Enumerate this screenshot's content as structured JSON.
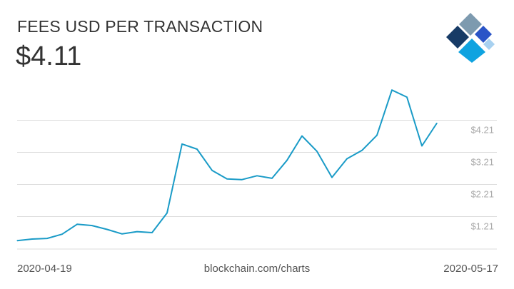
{
  "header": {
    "title": "FEES USD PER TRANSACTION",
    "current_value": "$4.11"
  },
  "footer": {
    "start_date": "2020-04-19",
    "source": "blockchain.com/charts",
    "end_date": "2020-05-17"
  },
  "colors": {
    "line": "#1a9bc7",
    "grid": "#dddddd",
    "tick_label": "#aaaaaa",
    "text": "#333333",
    "logo_dark": "#173b66",
    "logo_steel": "#7d9aaf",
    "logo_blue": "#2a54c7",
    "logo_cyan": "#0fa3e0",
    "logo_light": "#a8d1f0"
  },
  "logo": {
    "icon": "blockchain-logo-icon"
  },
  "chart_data": {
    "type": "line",
    "title": "FEES USD PER TRANSACTION",
    "x": [
      "2020-04-19",
      "2020-04-20",
      "2020-04-21",
      "2020-04-22",
      "2020-04-23",
      "2020-04-24",
      "2020-04-25",
      "2020-04-26",
      "2020-04-27",
      "2020-04-28",
      "2020-04-29",
      "2020-04-30",
      "2020-05-01",
      "2020-05-02",
      "2020-05-03",
      "2020-05-04",
      "2020-05-05",
      "2020-05-06",
      "2020-05-07",
      "2020-05-08",
      "2020-05-09",
      "2020-05-10",
      "2020-05-11",
      "2020-05-12",
      "2020-05-13",
      "2020-05-14",
      "2020-05-15",
      "2020-05-16",
      "2020-05-17"
    ],
    "series": [
      {
        "values": [
          0.45,
          0.5,
          0.52,
          0.65,
          0.96,
          0.92,
          0.8,
          0.66,
          0.73,
          0.7,
          1.31,
          3.46,
          3.3,
          2.64,
          2.37,
          2.35,
          2.47,
          2.39,
          2.95,
          3.71,
          3.23,
          2.42,
          3.0,
          3.26,
          3.73,
          5.14,
          4.92,
          3.4,
          4.11
        ]
      }
    ],
    "yticks": [
      "$1.21",
      "$2.21",
      "$3.21",
      "$4.21"
    ],
    "ytick_values": [
      1.21,
      2.21,
      3.21,
      4.21
    ],
    "xlabel": "",
    "ylabel": "",
    "ylim": [
      0.21,
      5.5
    ],
    "grid": true,
    "y_axis_position": "right"
  }
}
